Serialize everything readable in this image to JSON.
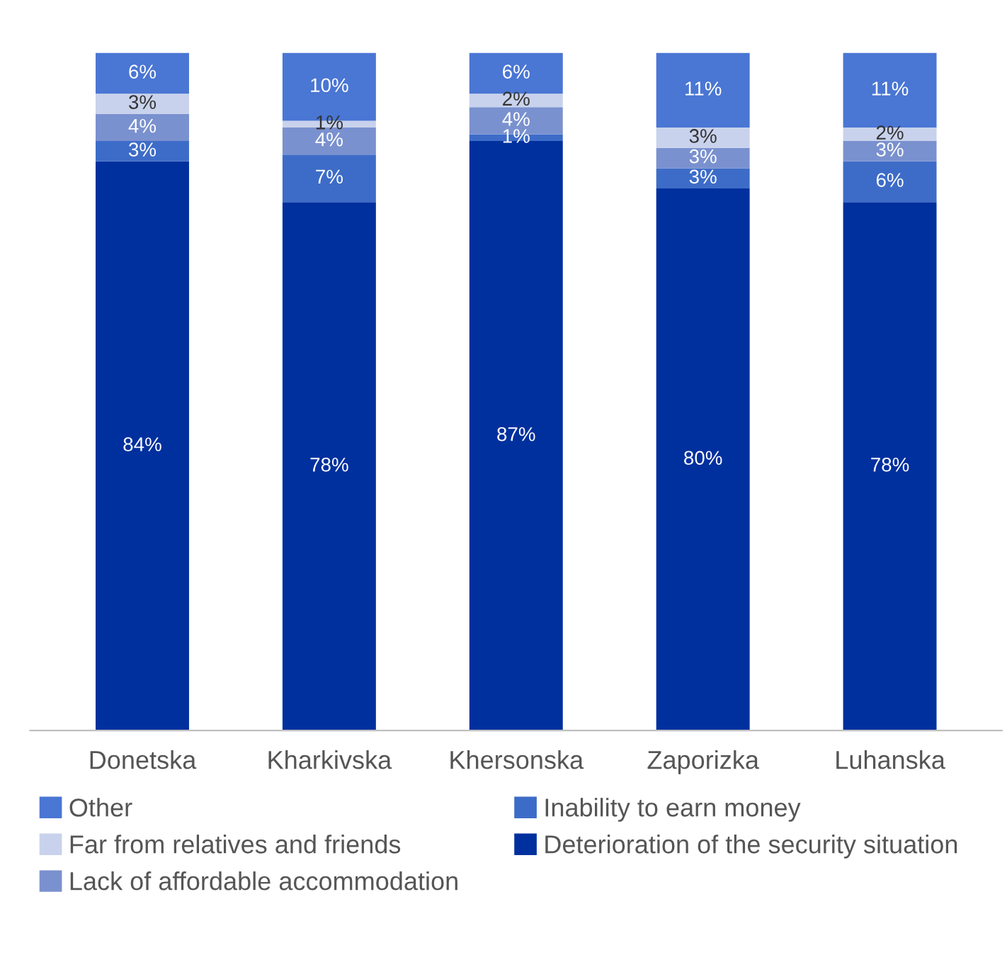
{
  "chart_data": {
    "type": "bar",
    "stacked": true,
    "categories": [
      "Donetska",
      "Kharkivska",
      "Khersonska",
      "Zaporizka",
      "Luhanska"
    ],
    "series": [
      {
        "name": "Deterioration of the security situation",
        "color": "#00309e",
        "values": [
          84,
          78,
          87,
          80,
          78
        ],
        "value_labels": [
          "84%",
          "78%",
          "87%",
          "80%",
          "78%"
        ]
      },
      {
        "name": "Inability to earn money",
        "color": "#3d6cc8",
        "values": [
          3,
          7,
          1,
          3,
          6
        ],
        "value_labels": [
          "3%",
          "7%",
          "1%",
          "3%",
          "6%"
        ]
      },
      {
        "name": "Lack of affordable accommodation",
        "color": "#7a91cf",
        "values": [
          4,
          4,
          4,
          3,
          3
        ],
        "value_labels": [
          "4%",
          "4%",
          "4%",
          "3%",
          "3%"
        ]
      },
      {
        "name": "Far from relatives and friends",
        "color": "#c9d2ec",
        "values": [
          3,
          1,
          2,
          3,
          2
        ],
        "value_labels": [
          "3%",
          "1%",
          "2%",
          "3%",
          "2%"
        ]
      },
      {
        "name": "Other",
        "color": "#4a76d4",
        "values": [
          6,
          10,
          6,
          11,
          11
        ],
        "value_labels": [
          "6%",
          "10%",
          "6%",
          "11%",
          "11%"
        ]
      }
    ],
    "legend": "bottom",
    "grid": false,
    "tick_labels": "x"
  }
}
